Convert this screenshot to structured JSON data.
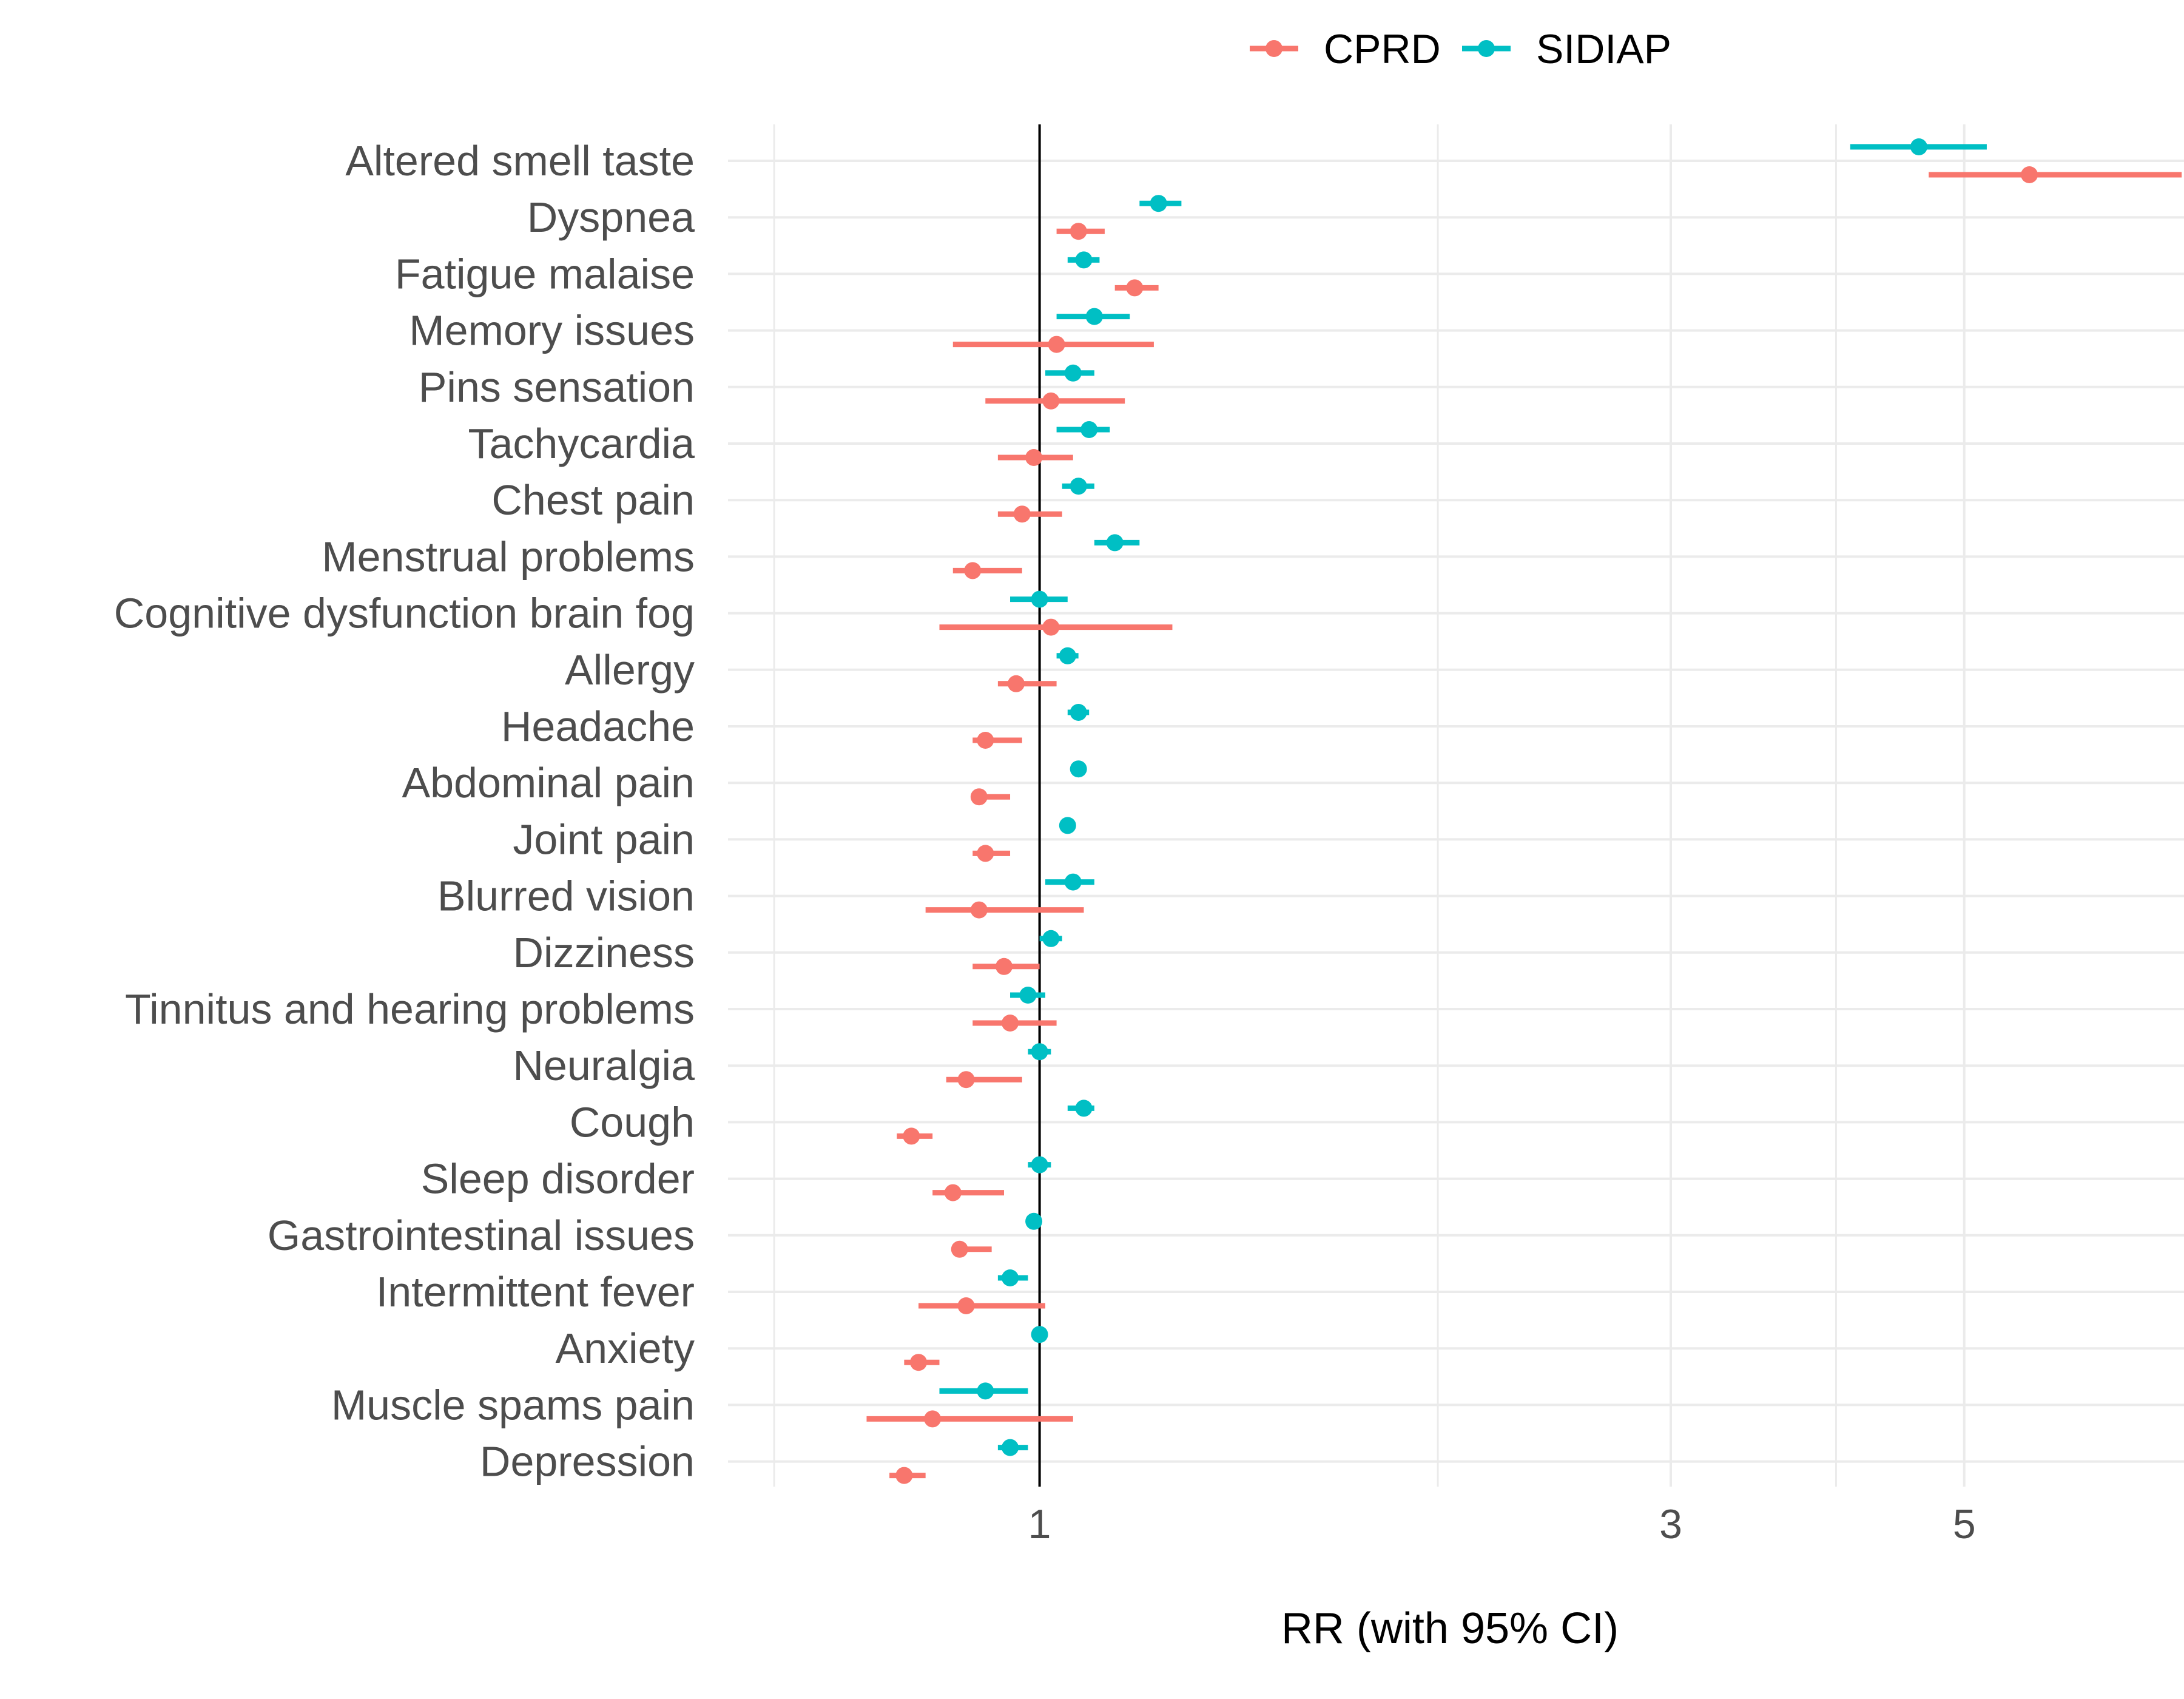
{
  "chart_data": {
    "type": "scatter",
    "subtype": "forest-plot",
    "xlabel": "RR (with 95% CI)",
    "xscale": "log",
    "xlim": [
      0.6,
      7.5
    ],
    "xticks": [
      1,
      3,
      5
    ],
    "xtick_labels": [
      "1",
      "3",
      "5"
    ],
    "reference_line": 1,
    "grid": true,
    "legend_position": "top",
    "categories": [
      "Altered smell taste",
      "Dyspnea",
      "Fatigue malaise",
      "Memory issues",
      "Pins sensation",
      "Tachycardia",
      "Chest pain",
      "Menstrual problems",
      "Cognitive dysfunction brain fog",
      "Allergy",
      "Headache",
      "Abdominal pain",
      "Joint pain",
      "Blurred vision",
      "Dizziness",
      "Tinnitus and hearing problems",
      "Neuralgia",
      "Cough",
      "Sleep disorder",
      "Gastrointestinal issues",
      "Intermittent fever",
      "Anxiety",
      "Muscle spams pain",
      "Depression"
    ],
    "series": [
      {
        "name": "CPRD",
        "color": "#F8766D",
        "estimate": [
          5.6,
          1.07,
          1.18,
          1.03,
          1.02,
          0.99,
          0.97,
          0.89,
          1.02,
          0.96,
          0.91,
          0.9,
          0.91,
          0.9,
          0.94,
          0.95,
          0.88,
          0.8,
          0.86,
          0.87,
          0.88,
          0.81,
          0.83,
          0.79
        ],
        "lower": [
          4.7,
          1.03,
          1.14,
          0.86,
          0.91,
          0.93,
          0.93,
          0.86,
          0.84,
          0.93,
          0.89,
          0.89,
          0.89,
          0.82,
          0.89,
          0.89,
          0.85,
          0.78,
          0.83,
          0.86,
          0.81,
          0.79,
          0.74,
          0.77
        ],
        "upper": [
          7.3,
          1.12,
          1.23,
          1.22,
          1.16,
          1.06,
          1.04,
          0.97,
          1.26,
          1.03,
          0.97,
          0.95,
          0.95,
          1.08,
          1.0,
          1.03,
          0.97,
          0.83,
          0.94,
          0.92,
          1.01,
          0.84,
          1.06,
          0.82
        ]
      },
      {
        "name": "SIDIAP",
        "color": "#00BFC4",
        "estimate": [
          4.62,
          1.23,
          1.08,
          1.1,
          1.06,
          1.09,
          1.07,
          1.14,
          1.0,
          1.05,
          1.07,
          1.07,
          1.05,
          1.06,
          1.02,
          0.98,
          1.0,
          1.08,
          1.0,
          0.99,
          0.95,
          1.0,
          0.91,
          0.95
        ],
        "lower": [
          4.1,
          1.19,
          1.05,
          1.03,
          1.01,
          1.03,
          1.04,
          1.1,
          0.95,
          1.03,
          1.05,
          1.07,
          1.05,
          1.01,
          1.0,
          0.95,
          0.98,
          1.05,
          0.98,
          0.98,
          0.93,
          0.99,
          0.84,
          0.93
        ],
        "upper": [
          5.2,
          1.28,
          1.11,
          1.17,
          1.1,
          1.13,
          1.1,
          1.19,
          1.05,
          1.07,
          1.09,
          1.08,
          1.06,
          1.1,
          1.04,
          1.01,
          1.02,
          1.1,
          1.02,
          1.0,
          0.98,
          1.01,
          0.98,
          0.98
        ]
      }
    ]
  }
}
